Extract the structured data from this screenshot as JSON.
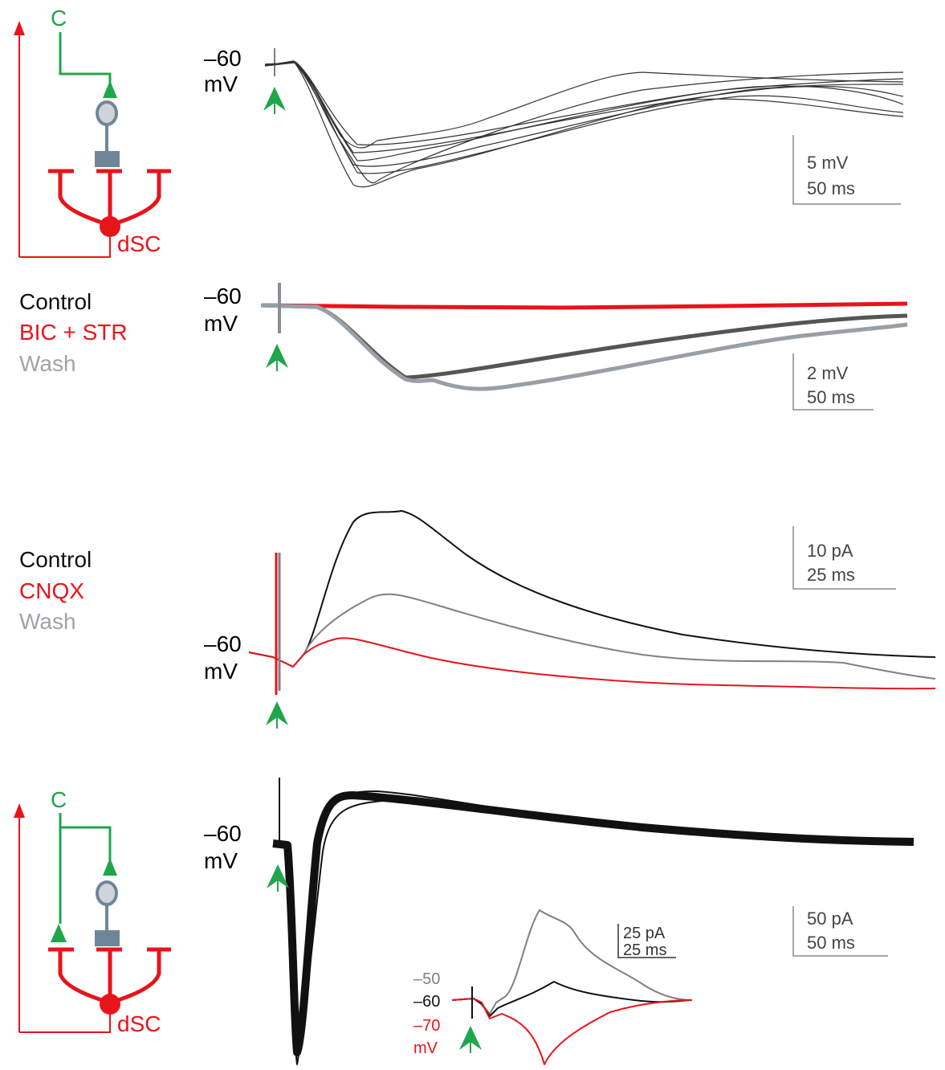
{
  "panels": [
    {
      "diagram": {
        "input": "C",
        "target": "dSC"
      },
      "holding": {
        "value": "–60",
        "unit": "mV"
      },
      "scale_bar": {
        "y": "5 mV",
        "x": "50 ms"
      }
    },
    {
      "legend": [
        "Control",
        "BIC + STR",
        "Wash"
      ],
      "holding": {
        "value": "–60",
        "unit": "mV"
      },
      "scale_bar": {
        "y": "2 mV",
        "x": "50 ms"
      }
    },
    {
      "legend": [
        "Control",
        "CNQX",
        "Wash"
      ],
      "holding": {
        "value": "–60",
        "unit": "mV"
      },
      "scale_bar": {
        "y": "10 pA",
        "x": "25 ms"
      }
    },
    {
      "diagram": {
        "input": "C",
        "target": "dSC"
      },
      "holding": {
        "value": "–60",
        "unit": "mV"
      },
      "scale_bar": {
        "y": "50 pA",
        "x": "50 ms"
      },
      "inset": {
        "scale_bar": {
          "y": "25 pA",
          "x": "25 ms"
        },
        "holdings": [
          "–50",
          "–60",
          "–70"
        ],
        "unit": "mV"
      }
    }
  ]
}
